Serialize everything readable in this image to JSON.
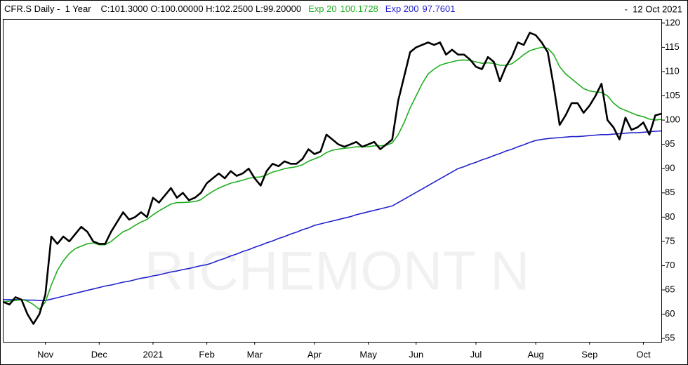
{
  "chart_data": {
    "type": "line",
    "title": "CFR.S Daily -  1 Year",
    "ohlc": "C:101.3000 O:100.00000 H:102.2500 L:99.20000",
    "date": "-  12 Oct 2021",
    "watermark": "RICHEMONT N",
    "categories": [
      null,
      null,
      null,
      null,
      null,
      null,
      null,
      "Nov",
      null,
      null,
      null,
      null,
      null,
      null,
      null,
      null,
      "Dec",
      null,
      null,
      null,
      null,
      null,
      null,
      null,
      null,
      "2021",
      null,
      null,
      null,
      null,
      null,
      null,
      null,
      null,
      "Feb",
      null,
      null,
      null,
      null,
      null,
      null,
      null,
      "Mar",
      null,
      null,
      null,
      null,
      null,
      null,
      null,
      null,
      null,
      "Apr",
      null,
      null,
      null,
      null,
      null,
      null,
      null,
      null,
      "May",
      null,
      null,
      null,
      null,
      null,
      null,
      null,
      "Jun",
      null,
      null,
      null,
      null,
      null,
      null,
      null,
      null,
      null,
      "Jul",
      null,
      null,
      null,
      null,
      null,
      null,
      null,
      null,
      null,
      "Aug",
      null,
      null,
      null,
      null,
      null,
      null,
      null,
      null,
      "Sep",
      null,
      null,
      null,
      null,
      null,
      null,
      null,
      null,
      "Oct",
      null,
      null,
      null
    ],
    "series": [
      {
        "color": "#000000",
        "values": [
          62.5,
          62,
          63.5,
          63,
          60,
          58,
          60,
          64,
          76,
          74.5,
          76,
          75,
          76.5,
          78,
          77,
          75,
          74.5,
          74.5,
          77,
          79,
          81,
          79.5,
          80,
          81,
          80,
          84,
          83,
          84.5,
          86,
          84,
          85,
          83.5,
          84,
          85,
          87,
          88,
          89,
          88,
          89.5,
          88.5,
          89,
          90,
          88,
          86.5,
          89.5,
          91,
          90.5,
          91.5,
          91,
          91,
          92,
          94,
          93,
          93.5,
          97,
          96,
          95,
          94.5,
          95,
          95.5,
          94.5,
          95,
          95.5,
          94,
          95,
          96,
          104,
          109,
          114,
          115,
          115.5,
          116,
          115.5,
          116,
          113.5,
          114.5,
          113.5,
          113.5,
          112.5,
          111,
          110.5,
          113,
          112,
          108,
          111,
          113,
          116,
          115.5,
          118,
          117.5,
          116,
          114,
          107,
          99,
          101,
          103.5,
          103.5,
          101.5,
          103,
          105,
          107.5,
          100,
          98.5,
          96,
          100.5,
          98,
          98.5,
          99.5,
          97,
          101,
          101.3
        ]
      },
      {
        "name": "Exp 20",
        "legend_value": "100.1728",
        "color": "#1fae1f",
        "values": [
          62.5,
          62.7,
          62.8,
          63,
          62.7,
          62,
          61,
          62.5,
          66,
          69,
          71,
          72.5,
          73.5,
          74,
          74.5,
          74.7,
          74.3,
          74.3,
          75,
          76,
          77,
          77.5,
          78.3,
          79,
          79.5,
          80.5,
          81.3,
          82,
          82.7,
          83,
          83,
          83.1,
          83.2,
          83.6,
          84.5,
          85.3,
          86,
          86.5,
          87,
          87.3,
          87.6,
          88,
          88.2,
          88.3,
          88.7,
          89.3,
          89.6,
          90,
          90.2,
          90.4,
          90.8,
          91.5,
          92,
          92.5,
          93.3,
          93.8,
          94,
          94.2,
          94.3,
          94.5,
          94.5,
          94.5,
          94.7,
          94.7,
          94.8,
          95.3,
          97,
          99.5,
          102.5,
          105,
          107.5,
          109.5,
          110.5,
          111.3,
          111.7,
          112,
          112.3,
          112.4,
          112.3,
          112,
          111.7,
          111.8,
          111.7,
          111.3,
          111.3,
          111.6,
          112.5,
          113.5,
          114.3,
          114.7,
          115,
          114.8,
          113.5,
          111,
          109.5,
          108.5,
          107.5,
          106.5,
          106,
          105.8,
          105.7,
          105,
          103.5,
          102.5,
          102,
          101.5,
          101,
          100.7,
          100.2,
          100,
          100.1728
        ]
      },
      {
        "name": "Exp 200",
        "legend_value": "97.7601",
        "color": "#2222cc",
        "values": [
          63,
          63,
          63,
          63,
          62.9,
          62.9,
          62.8,
          62.8,
          63.1,
          63.4,
          63.7,
          64,
          64.3,
          64.6,
          64.9,
          65.2,
          65.5,
          65.8,
          66.0,
          66.3,
          66.6,
          66.8,
          67.1,
          67.4,
          67.6,
          67.9,
          68.1,
          68.4,
          68.7,
          68.9,
          69.2,
          69.4,
          69.7,
          70.0,
          70.2,
          70.6,
          71.1,
          71.5,
          72.0,
          72.4,
          72.9,
          73.3,
          73.8,
          74.2,
          74.7,
          75.1,
          75.6,
          76.0,
          76.5,
          76.9,
          77.4,
          77.8,
          78.3,
          78.6,
          78.9,
          79.2,
          79.5,
          79.8,
          80.1,
          80.5,
          80.8,
          81.1,
          81.4,
          81.7,
          82.0,
          82.3,
          83.0,
          83.7,
          84.4,
          85.1,
          85.8,
          86.5,
          87.2,
          87.9,
          88.6,
          89.3,
          90.0,
          90.4,
          90.9,
          91.3,
          91.8,
          92.2,
          92.7,
          93.1,
          93.6,
          94.0,
          94.5,
          94.9,
          95.4,
          95.8,
          96.0,
          96.2,
          96.3,
          96.4,
          96.5,
          96.6,
          96.6,
          96.7,
          96.8,
          96.9,
          97.0,
          97.0,
          97.1,
          97.2,
          97.3,
          97.4,
          97.4,
          97.5,
          97.6,
          97.7,
          97.7601
        ]
      }
    ],
    "ylim": [
      54.3,
      120.7
    ],
    "yticks": [
      55,
      60,
      65,
      70,
      75,
      80,
      85,
      90,
      95,
      100,
      105,
      110,
      115,
      120
    ],
    "grid": false
  }
}
